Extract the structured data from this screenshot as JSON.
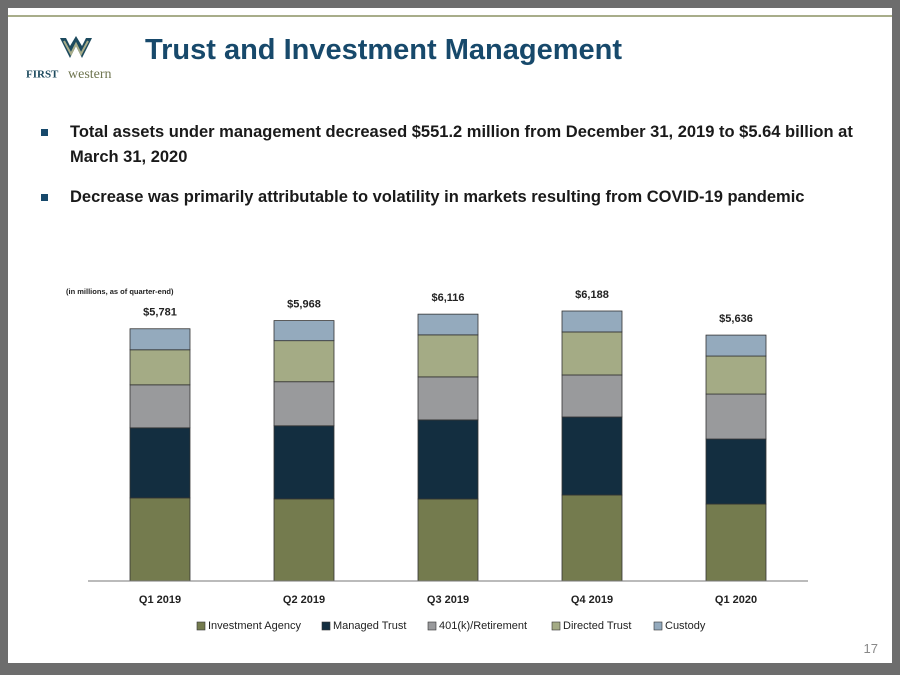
{
  "logo": {
    "first": "FIRST",
    "western": "western"
  },
  "header": {
    "title": "Trust and Investment Management"
  },
  "bullets": [
    "Total assets under management decreased $551.2 million from December 31, 2019 to $5.64 billion at March 31, 2020",
    "Decrease was primarily attributable to volatility in markets resulting from COVID-19 pandemic"
  ],
  "chart_data": {
    "type": "stacked-bar",
    "note": "(in millions, as of quarter-end)",
    "categories": [
      "Q1 2019",
      "Q2 2019",
      "Q3 2019",
      "Q4 2019",
      "Q1 2020"
    ],
    "series": [
      {
        "name": "Investment Agency",
        "color": "#747b4e",
        "values": [
          1904,
          1882,
          1880,
          1971,
          1764
        ]
      },
      {
        "name": "Managed Trust",
        "color": "#132e40",
        "values": [
          1606,
          1675,
          1812,
          1788,
          1490
        ]
      },
      {
        "name": "401(k)/Retirement",
        "color": "#999a9c",
        "values": [
          986,
          1010,
          986,
          963,
          1031
        ]
      },
      {
        "name": "Directed Trust",
        "color": "#a4ab85",
        "values": [
          803,
          941,
          963,
          986,
          871
        ]
      },
      {
        "name": "Custody",
        "color": "#94aabd",
        "values": [
          482,
          460,
          475,
          480,
          480
        ]
      }
    ],
    "total_labels": [
      "$5,781",
      "$5,968",
      "$6,116",
      "$6,188",
      "$5,636"
    ]
  },
  "page_number": "17"
}
